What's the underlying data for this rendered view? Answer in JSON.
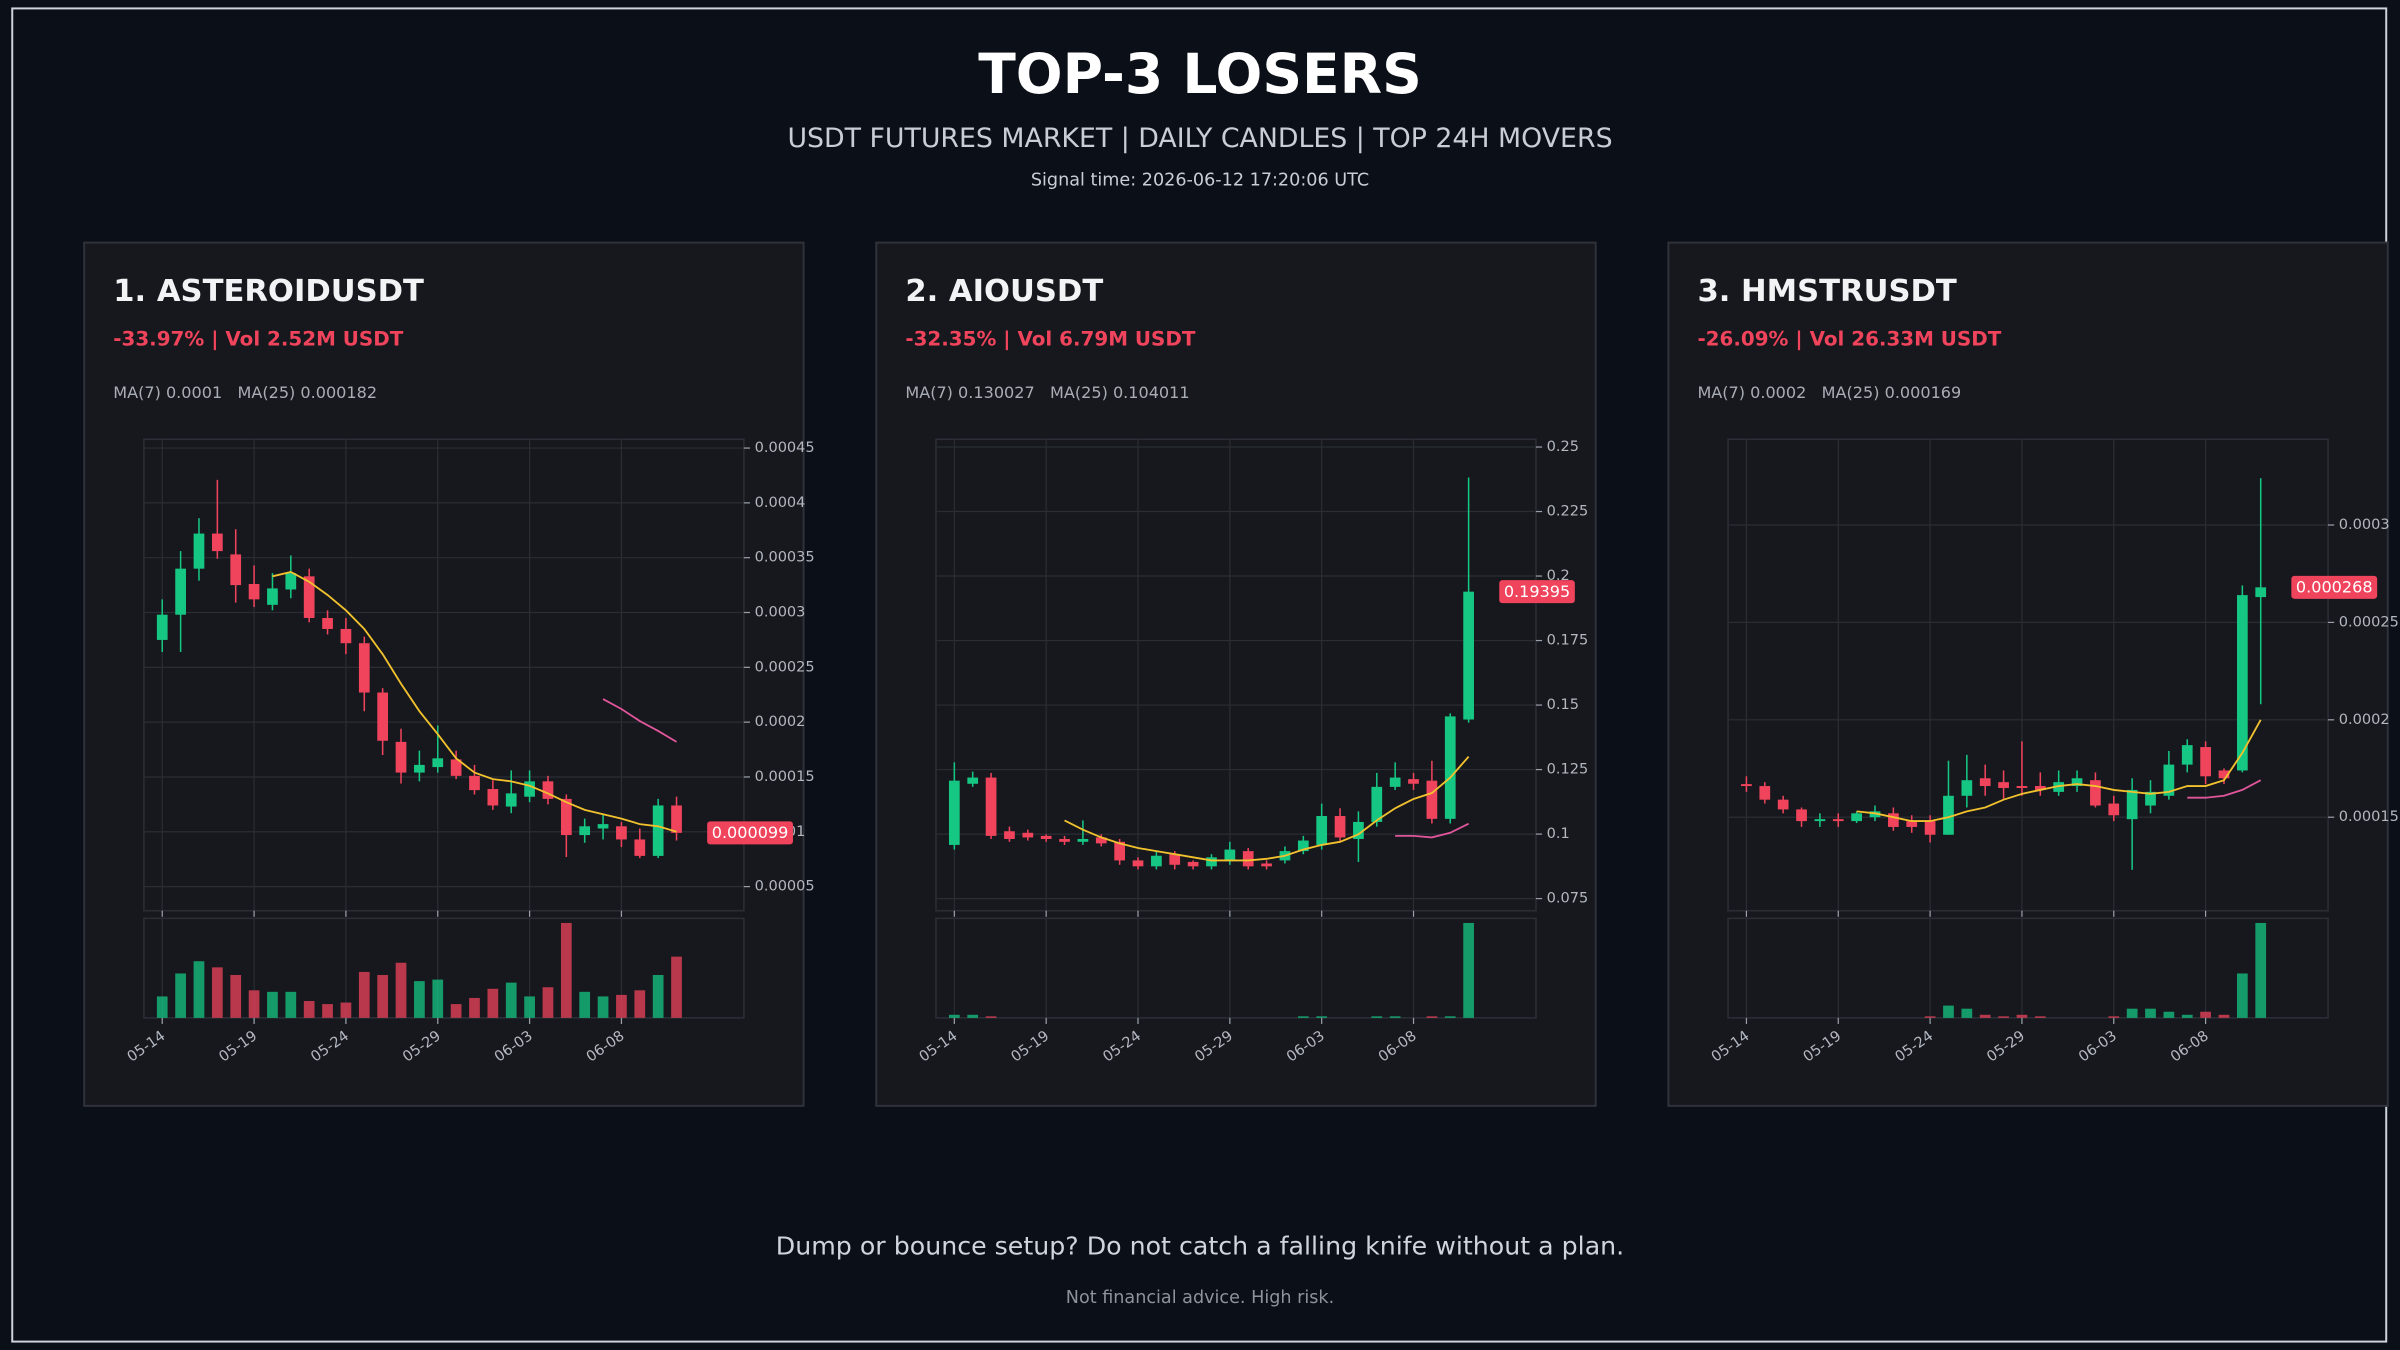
{
  "header": {
    "title": "TOP-3 LOSERS",
    "subtitle": "USDT FUTURES MARKET | DAILY CANDLES | TOP 24H MOVERS",
    "signal_time": "Signal time: 2026-06-12 17:20:06 UTC"
  },
  "footer": {
    "headline": "Dump or bounce setup? Do not catch a falling knife without a plan.",
    "disclaimer": "Not financial advice. High risk."
  },
  "chart_data": [
    {
      "type": "candlestick",
      "title": "1. ASTEROIDUSDT",
      "subtitle": "-33.97% | Vol 2.52M USDT",
      "categories": [
        "05-14",
        null,
        null,
        null,
        null,
        "05-19",
        null,
        null,
        null,
        null,
        "05-24",
        null,
        null,
        null,
        null,
        "05-29",
        null,
        null,
        null,
        null,
        "06-03",
        null,
        null,
        null,
        null,
        "06-08",
        null,
        null,
        null
      ],
      "open": [
        0.000275,
        0.000298,
        0.00034,
        0.000372,
        0.000353,
        0.000326,
        0.000307,
        0.000321,
        0.000333,
        0.000295,
        0.000285,
        0.000272,
        0.000227,
        0.000182,
        0.000154,
        0.000159,
        0.000166,
        0.000151,
        0.000139,
        0.000123,
        0.000132,
        0.000146,
        0.00013,
        9.7e-05,
        0.000103,
        0.000105,
        9.3e-05,
        7.8e-05,
        0.000124
      ],
      "high": [
        0.000312,
        0.000356,
        0.000386,
        0.000421,
        0.000376,
        0.000343,
        0.000336,
        0.000352,
        0.00034,
        0.000302,
        0.000295,
        0.000278,
        0.000231,
        0.000194,
        0.000174,
        0.000197,
        0.000174,
        0.000161,
        0.000147,
        0.000156,
        0.000156,
        0.000151,
        0.000134,
        0.000112,
        0.000116,
        0.000109,
        0.000103,
        0.00013,
        0.000132
      ],
      "low": [
        0.000264,
        0.000264,
        0.000329,
        0.000349,
        0.000309,
        0.000305,
        0.000302,
        0.000313,
        0.000291,
        0.00028,
        0.000262,
        0.00021,
        0.00017,
        0.000144,
        0.000146,
        0.000154,
        0.000148,
        0.000134,
        0.00012,
        0.000117,
        0.000127,
        0.000125,
        7.7e-05,
        9e-05,
        9.3e-05,
        8.6e-05,
        7.6e-05,
        7.6e-05,
        9.2e-05
      ],
      "close": [
        0.000298,
        0.00034,
        0.000372,
        0.000356,
        0.000325,
        0.000312,
        0.000322,
        0.000336,
        0.000295,
        0.000285,
        0.000272,
        0.000227,
        0.000183,
        0.000154,
        0.000161,
        0.000167,
        0.000151,
        0.000138,
        0.000124,
        0.000135,
        0.000146,
        0.00013,
        9.7e-05,
        0.000105,
        0.000107,
        9.3e-05,
        7.8e-05,
        0.000124,
        9.9e-05
      ],
      "volume": [
        14,
        29,
        37,
        33,
        28,
        18,
        17,
        17,
        11,
        9,
        10,
        30,
        28,
        36,
        24,
        25,
        9,
        13,
        19,
        23,
        14,
        20,
        62,
        17,
        14,
        15,
        18,
        28,
        40
      ],
      "ma_lines": [
        {
          "label": "MA(7) 0.0001",
          "color": "#f2c12e",
          "values": [
            null,
            null,
            null,
            null,
            null,
            null,
            0.000333,
            0.000337,
            0.000328,
            0.000316,
            0.000302,
            0.000285,
            0.000262,
            0.000235,
            0.00021,
            0.000189,
            0.000167,
            0.000154,
            0.000148,
            0.000146,
            0.000142,
            0.000135,
            0.000127,
            0.00012,
            0.000116,
            0.000112,
            0.000107,
            0.000105,
            0.0001
          ]
        },
        {
          "label": "MA(25) 0.000182",
          "color": "#e0569b",
          "values": [
            null,
            null,
            null,
            null,
            null,
            null,
            null,
            null,
            null,
            null,
            null,
            null,
            null,
            null,
            null,
            null,
            null,
            null,
            null,
            null,
            null,
            null,
            null,
            null,
            0.000221,
            0.000212,
            0.000201,
            0.000192,
            0.000182
          ]
        }
      ],
      "last_price": 9.9e-05,
      "ylim": [
        2.8e-05,
        0.000458
      ],
      "yticks": [
        5e-05,
        0.0001,
        0.00015,
        0.0002,
        0.00025,
        0.0003,
        0.00035,
        0.0004,
        0.00045
      ],
      "up_color": "#16c784",
      "down_color": "#f0435c",
      "grid": true
    },
    {
      "type": "candlestick",
      "title": "2. AIOUSDT",
      "subtitle": "-32.35% | Vol 6.79M USDT",
      "categories": [
        "05-14",
        null,
        null,
        null,
        null,
        "05-19",
        null,
        null,
        null,
        null,
        "05-24",
        null,
        null,
        null,
        null,
        "05-29",
        null,
        null,
        null,
        null,
        "06-03",
        null,
        null,
        null,
        null,
        "06-08",
        null,
        null,
        null
      ],
      "open": [
        0.0958,
        0.1195,
        0.1219,
        0.1011,
        0.1005,
        0.0993,
        0.0981,
        0.097,
        0.0987,
        0.097,
        0.0898,
        0.0875,
        0.0922,
        0.0892,
        0.0875,
        0.0898,
        0.0934,
        0.0886,
        0.0898,
        0.0934,
        0.0958,
        0.107,
        0.0981,
        0.1047,
        0.1183,
        0.1213,
        0.1207,
        0.1059,
        0.1444
      ],
      "high": [
        0.1278,
        0.1242,
        0.1237,
        0.1029,
        0.1017,
        0.0999,
        0.0993,
        0.1053,
        0.0999,
        0.0981,
        0.091,
        0.0934,
        0.0934,
        0.0898,
        0.0922,
        0.097,
        0.0946,
        0.0898,
        0.0952,
        0.0993,
        0.1118,
        0.11,
        0.1088,
        0.1237,
        0.1278,
        0.1237,
        0.1284,
        0.1468,
        0.2382
      ],
      "low": [
        0.094,
        0.1183,
        0.0981,
        0.097,
        0.0975,
        0.097,
        0.0958,
        0.0958,
        0.0952,
        0.0881,
        0.0863,
        0.0863,
        0.0863,
        0.0863,
        0.0863,
        0.0881,
        0.0863,
        0.0863,
        0.0886,
        0.0922,
        0.094,
        0.097,
        0.0892,
        0.1029,
        0.1171,
        0.1171,
        0.1041,
        0.1041,
        0.1432
      ],
      "close": [
        0.1207,
        0.1219,
        0.0993,
        0.0981,
        0.0987,
        0.0981,
        0.097,
        0.0981,
        0.0964,
        0.0898,
        0.0875,
        0.0916,
        0.0881,
        0.0875,
        0.091,
        0.094,
        0.0875,
        0.0875,
        0.0934,
        0.0975,
        0.107,
        0.0987,
        0.1047,
        0.1183,
        0.1219,
        0.1195,
        0.1059,
        0.1456,
        0.19395
      ],
      "volume": [
        2,
        2,
        1,
        0,
        0,
        0,
        0,
        0,
        0,
        0,
        0,
        0,
        0,
        0,
        0,
        0,
        0,
        0,
        0,
        1,
        1,
        0,
        0,
        1,
        1,
        0,
        1,
        1,
        62
      ],
      "ma_lines": [
        {
          "label": "MA(7) 0.130027",
          "color": "#f2c12e",
          "values": [
            null,
            null,
            null,
            null,
            null,
            null,
            0.1053,
            0.1017,
            0.0987,
            0.0964,
            0.0946,
            0.0934,
            0.0922,
            0.091,
            0.0898,
            0.0898,
            0.0898,
            0.0904,
            0.0916,
            0.094,
            0.0958,
            0.097,
            0.0999,
            0.1053,
            0.11,
            0.1136,
            0.1159,
            0.1219,
            0.130027
          ]
        },
        {
          "label": "MA(25) 0.104011",
          "color": "#e0569b",
          "values": [
            null,
            null,
            null,
            null,
            null,
            null,
            null,
            null,
            null,
            null,
            null,
            null,
            null,
            null,
            null,
            null,
            null,
            null,
            null,
            null,
            null,
            null,
            null,
            null,
            0.0993,
            0.0993,
            0.0987,
            0.1005,
            0.104011
          ]
        }
      ],
      "last_price": 0.19395,
      "ylim": [
        0.0703,
        0.253
      ],
      "yticks": [
        0.075,
        0.1,
        0.125,
        0.15,
        0.175,
        0.2,
        0.225,
        0.25
      ],
      "up_color": "#16c784",
      "down_color": "#f0435c",
      "grid": true
    },
    {
      "type": "candlestick",
      "title": "3. HMSTRUSDT",
      "subtitle": "-26.09% | Vol 26.33M USDT",
      "categories": [
        "05-14",
        null,
        null,
        null,
        null,
        "05-19",
        null,
        null,
        null,
        null,
        "05-24",
        null,
        null,
        null,
        null,
        "05-29",
        null,
        null,
        null,
        null,
        "06-03",
        null,
        null,
        null,
        null,
        "06-08",
        null,
        null,
        null
      ],
      "open": [
        0.000167,
        0.000166,
        0.000159,
        0.000154,
        0.000148,
        0.000149,
        0.000148,
        0.00015,
        0.000152,
        0.000148,
        0.000148,
        0.000141,
        0.000161,
        0.00017,
        0.000168,
        0.000166,
        0.000166,
        0.000163,
        0.000166,
        0.000169,
        0.000157,
        0.000149,
        0.000156,
        0.000161,
        0.000177,
        0.000186,
        0.000174,
        0.000174,
        0.000263
      ],
      "high": [
        0.000171,
        0.000168,
        0.000161,
        0.000155,
        0.000152,
        0.000152,
        0.000153,
        0.000156,
        0.000155,
        0.000151,
        0.000151,
        0.000179,
        0.000182,
        0.000177,
        0.000174,
        0.000189,
        0.000173,
        0.000174,
        0.000174,
        0.000173,
        0.000161,
        0.00017,
        0.000169,
        0.000184,
        0.00019,
        0.000189,
        0.000175,
        0.000269,
        0.000324
      ],
      "low": [
        0.000163,
        0.000157,
        0.000152,
        0.000145,
        0.000145,
        0.000145,
        0.000147,
        0.000148,
        0.000143,
        0.000142,
        0.000137,
        0.000141,
        0.000155,
        0.000161,
        0.000159,
        0.000161,
        0.000161,
        0.000161,
        0.000163,
        0.000155,
        0.000148,
        0.000123,
        0.000152,
        0.000159,
        0.000173,
        0.000167,
        0.000167,
        0.000173,
        0.000208
      ],
      "close": [
        0.000166,
        0.000159,
        0.000154,
        0.000148,
        0.000149,
        0.000148,
        0.000152,
        0.000153,
        0.000145,
        0.000145,
        0.000141,
        0.000161,
        0.000169,
        0.000166,
        0.000165,
        0.000165,
        0.000164,
        0.000168,
        0.00017,
        0.000156,
        0.000151,
        0.000164,
        0.000163,
        0.000177,
        0.000187,
        0.000171,
        0.00017,
        0.000264,
        0.000268
      ],
      "volume": [
        0,
        0,
        0,
        0,
        0,
        0,
        0,
        0,
        0,
        0,
        1,
        8,
        6,
        2,
        1,
        2,
        1,
        0,
        0,
        0,
        1,
        6,
        6,
        4,
        2,
        4,
        2,
        29,
        62
      ],
      "ma_lines": [
        {
          "label": "MA(7) 0.0002",
          "color": "#f2c12e",
          "values": [
            null,
            null,
            null,
            null,
            null,
            null,
            0.000153,
            0.000152,
            0.00015,
            0.000148,
            0.000148,
            0.00015,
            0.000153,
            0.000155,
            0.000159,
            0.000162,
            0.000164,
            0.000166,
            0.000167,
            0.000166,
            0.000164,
            0.000163,
            0.000162,
            0.000163,
            0.000166,
            0.000166,
            0.000169,
            0.000183,
            0.0002
          ]
        },
        {
          "label": "MA(25) 0.000169",
          "color": "#e0569b",
          "values": [
            null,
            null,
            null,
            null,
            null,
            null,
            null,
            null,
            null,
            null,
            null,
            null,
            null,
            null,
            null,
            null,
            null,
            null,
            null,
            null,
            null,
            null,
            null,
            null,
            0.00016,
            0.00016,
            0.000161,
            0.000164,
            0.000169
          ]
        }
      ],
      "last_price": 0.000268,
      "ylim": [
        0.000102,
        0.000344
      ],
      "yticks": [
        0.00015,
        0.0002,
        0.00025,
        0.0003
      ],
      "up_color": "#16c784",
      "down_color": "#f0435c",
      "grid": true
    }
  ]
}
